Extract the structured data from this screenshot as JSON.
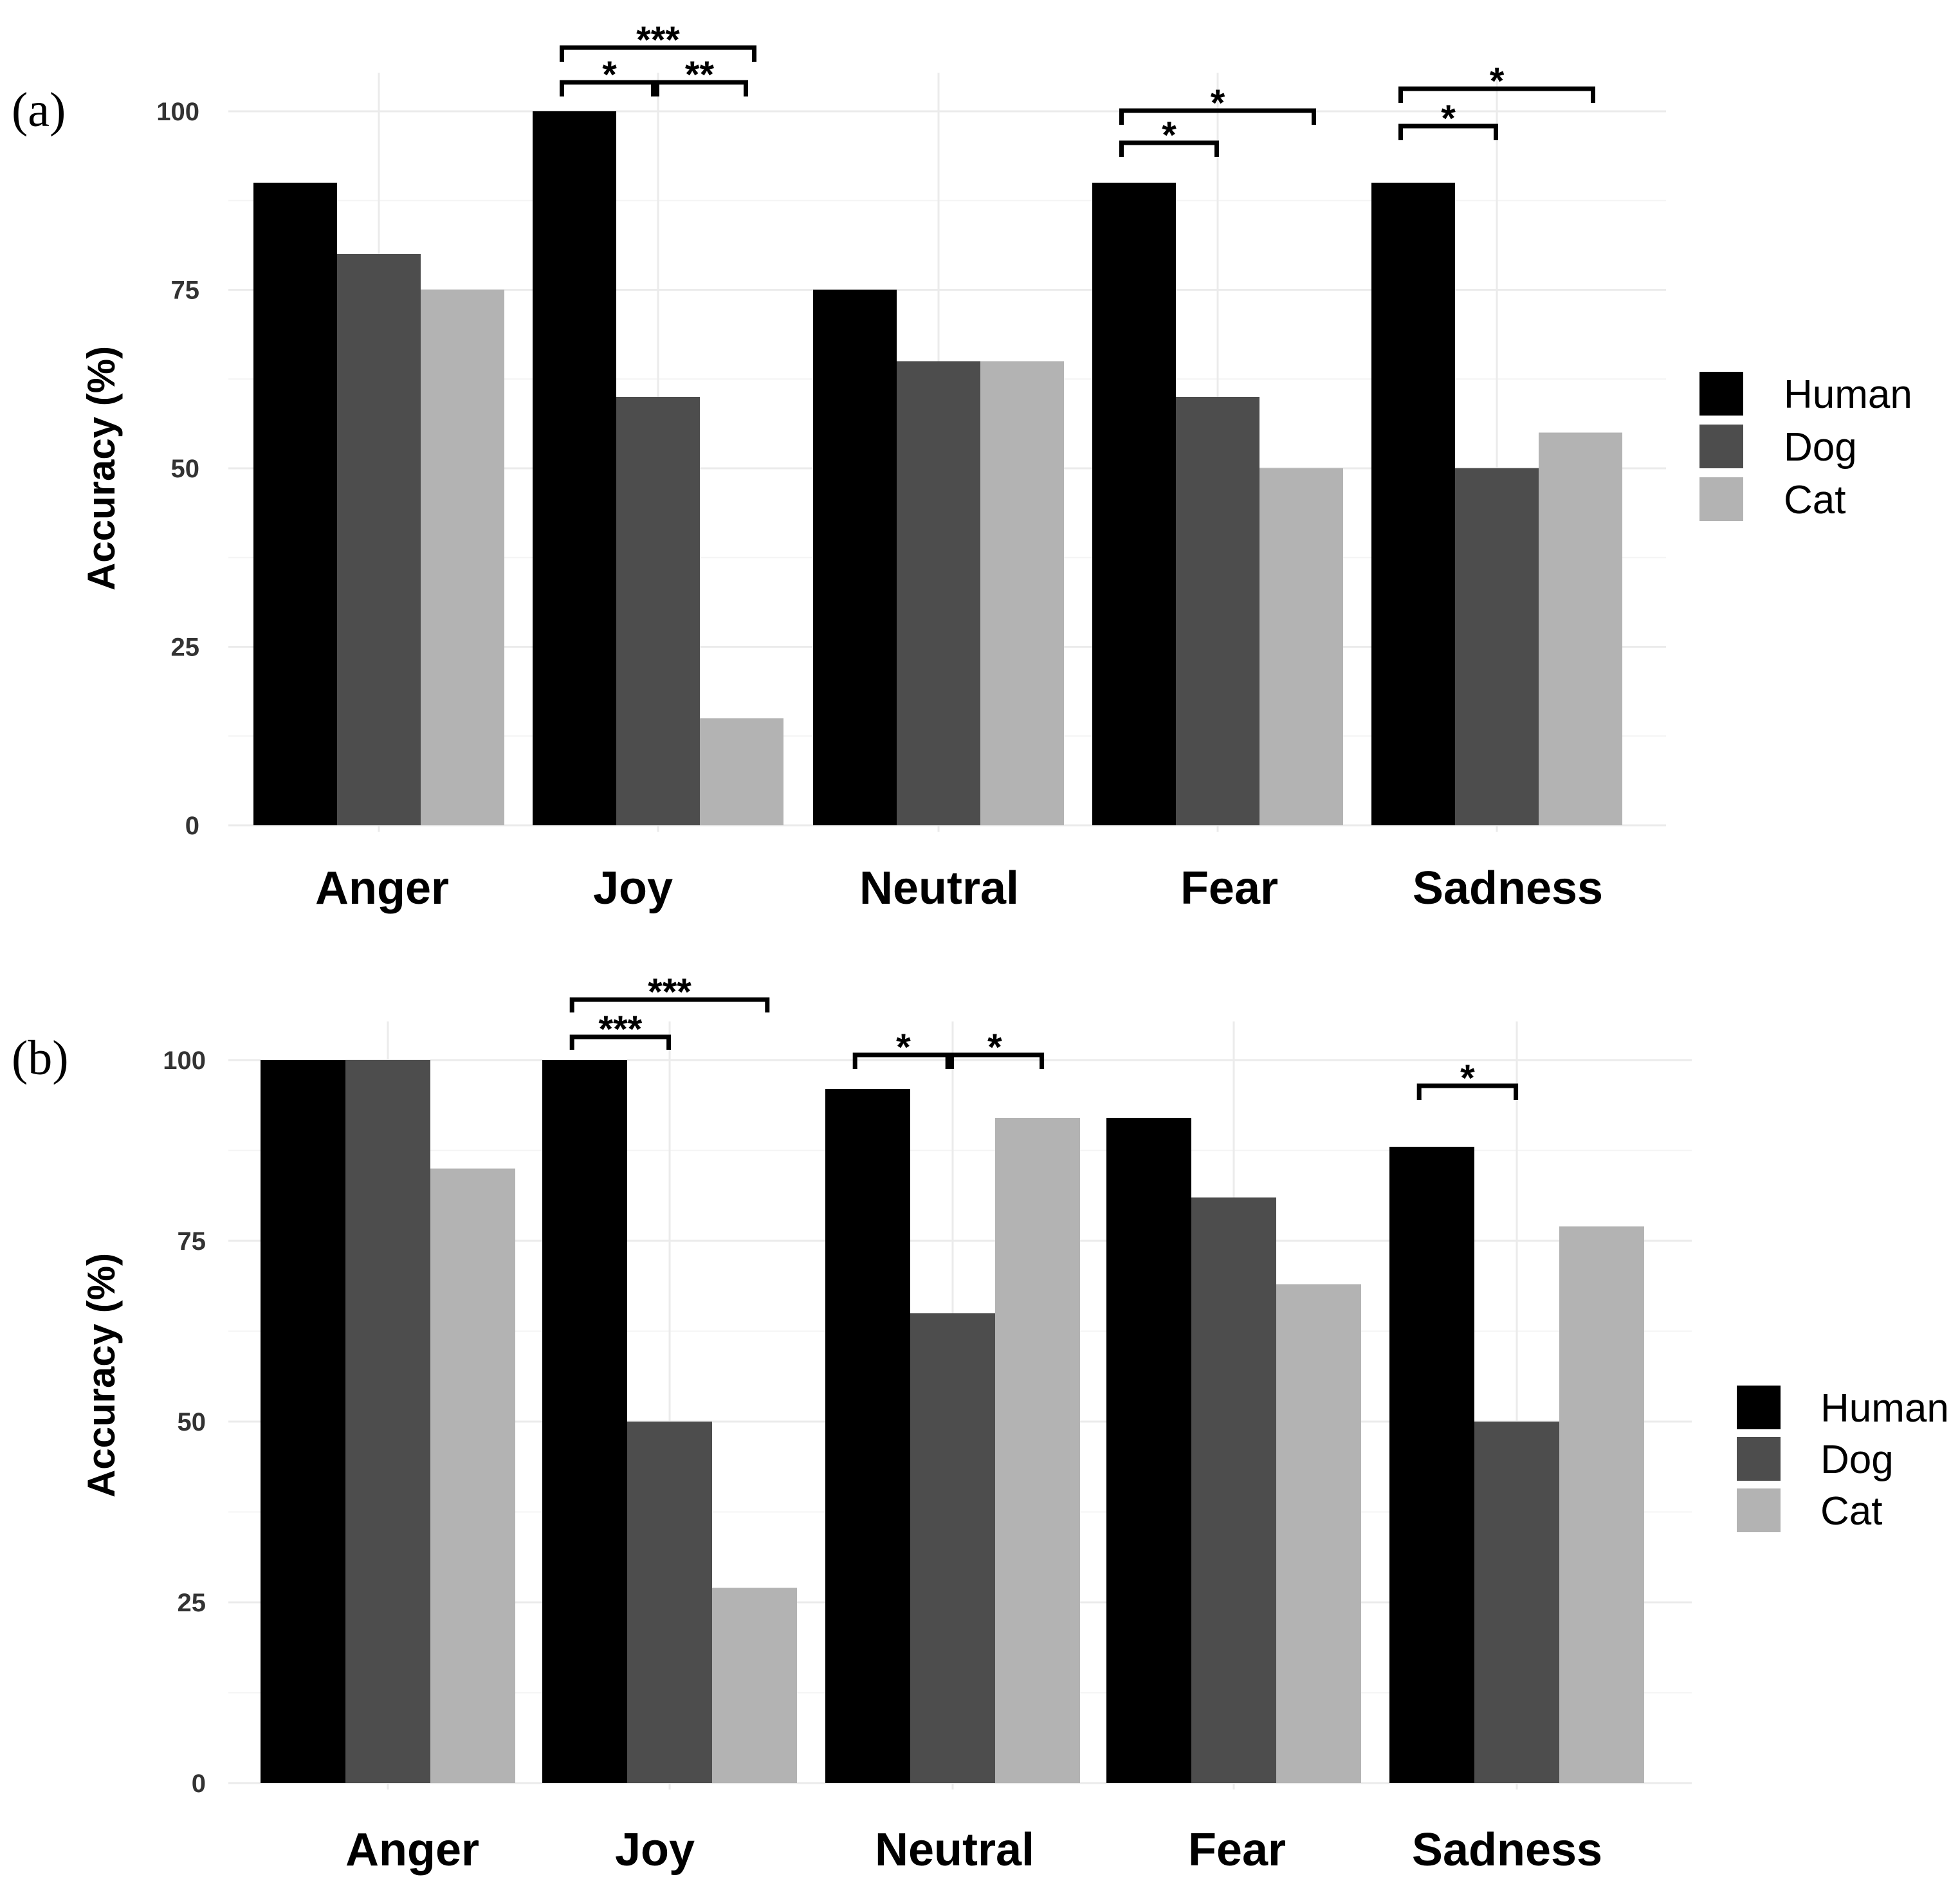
{
  "colors": {
    "Human": "#000000",
    "Dog": "#4d4d4d",
    "Cat": "#b3b3b3"
  },
  "chart_data": [
    {
      "panel": "(a)",
      "type": "bar",
      "ylabel": "Accuracy (%)",
      "xlabel": "",
      "ylim": [
        0,
        100
      ],
      "yticks": [
        "0",
        "25",
        "50",
        "75",
        "100"
      ],
      "categories": [
        "Anger",
        "Joy",
        "Neutral",
        "Fear",
        "Sadness"
      ],
      "legend": [
        "Human",
        "Dog",
        "Cat"
      ],
      "series": [
        {
          "name": "Human",
          "values": [
            90,
            100,
            75,
            90,
            90
          ]
        },
        {
          "name": "Dog",
          "values": [
            80,
            60,
            65,
            60,
            50
          ]
        },
        {
          "name": "Cat",
          "values": [
            75,
            15,
            65,
            50,
            55
          ]
        }
      ],
      "significance": [
        {
          "category": "Joy",
          "from": "Human",
          "to": "Cat",
          "label": "***"
        },
        {
          "category": "Joy",
          "from": "Human",
          "to": "Dog",
          "label": "*"
        },
        {
          "category": "Joy",
          "from": "Dog",
          "to": "Cat",
          "label": "**"
        },
        {
          "category": "Fear",
          "from": "Human",
          "to": "Cat",
          "label": "*"
        },
        {
          "category": "Fear",
          "from": "Human",
          "to": "Dog",
          "label": "*"
        },
        {
          "category": "Sadness",
          "from": "Human",
          "to": "Cat",
          "label": "*"
        },
        {
          "category": "Sadness",
          "from": "Human",
          "to": "Dog",
          "label": "*"
        }
      ]
    },
    {
      "panel": "(b)",
      "type": "bar",
      "ylabel": "Accuracy (%)",
      "xlabel": "",
      "ylim": [
        0,
        100
      ],
      "yticks": [
        "0",
        "25",
        "50",
        "75",
        "100"
      ],
      "categories": [
        "Anger",
        "Joy",
        "Neutral",
        "Fear",
        "Sadness"
      ],
      "legend": [
        "Human",
        "Dog",
        "Cat"
      ],
      "series": [
        {
          "name": "Human",
          "values": [
            100,
            100,
            96,
            92,
            88
          ]
        },
        {
          "name": "Dog",
          "values": [
            100,
            50,
            65,
            81,
            50
          ]
        },
        {
          "name": "Cat",
          "values": [
            85,
            27,
            92,
            69,
            77
          ]
        }
      ],
      "significance": [
        {
          "category": "Joy",
          "from": "Human",
          "to": "Cat",
          "label": "***"
        },
        {
          "category": "Joy",
          "from": "Human",
          "to": "Dog",
          "label": "***"
        },
        {
          "category": "Neutral",
          "from": "Human",
          "to": "Dog",
          "label": "*"
        },
        {
          "category": "Neutral",
          "from": "Dog",
          "to": "Cat",
          "label": "*"
        },
        {
          "category": "Sadness",
          "from": "Human",
          "to": "Dog",
          "label": "*"
        }
      ]
    }
  ]
}
